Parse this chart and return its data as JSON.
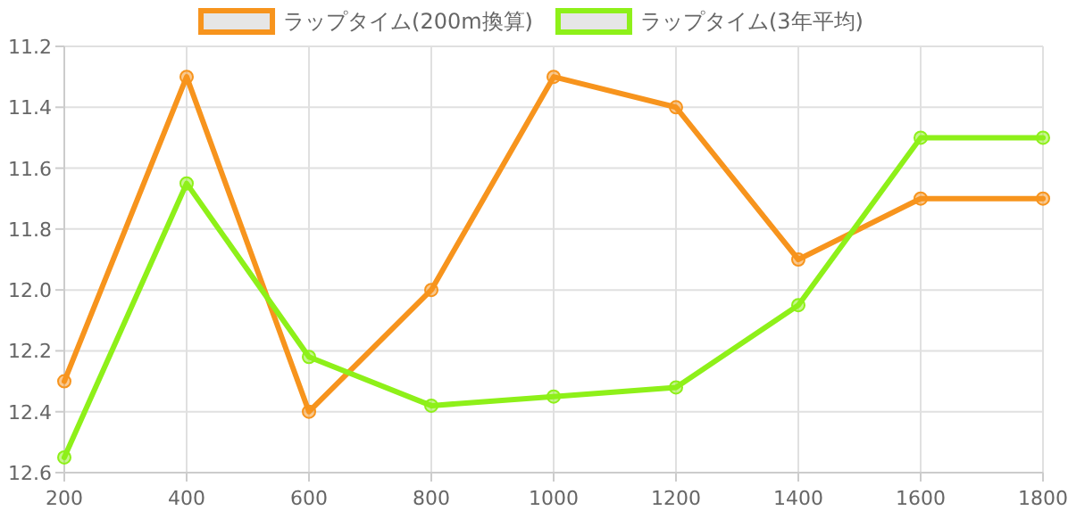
{
  "chart_data": {
    "type": "line",
    "x": [
      200,
      400,
      600,
      800,
      1000,
      1200,
      1400,
      1600,
      1800
    ],
    "series": [
      {
        "name": "ラップタイム(200m換算)",
        "color": "#f7941d",
        "values": [
          12.3,
          11.3,
          12.4,
          12.0,
          11.3,
          11.4,
          11.9,
          11.7,
          11.7
        ]
      },
      {
        "name": "ラップタイム(3年平均)",
        "color": "#8ef019",
        "values": [
          12.55,
          11.65,
          12.22,
          12.38,
          12.35,
          12.32,
          12.05,
          11.5,
          11.5
        ]
      }
    ],
    "xlim": [
      200,
      1800
    ],
    "xticks": [
      200,
      400,
      600,
      800,
      1000,
      1200,
      1400,
      1600,
      1800
    ],
    "ylim": [
      12.6,
      11.2
    ],
    "yticks": [
      {
        "value": 11.2,
        "label": "11.2"
      },
      {
        "value": 11.4,
        "label": "11.4"
      },
      {
        "value": 11.6,
        "label": "11.6"
      },
      {
        "value": 11.8,
        "label": "11.8"
      },
      {
        "value": 12.0,
        "label": "12.0"
      },
      {
        "value": 12.2,
        "label": "12.2"
      },
      {
        "value": 12.4,
        "label": "12.4"
      },
      {
        "value": 12.6,
        "label": "12.6"
      }
    ],
    "grid": true,
    "legend": "top",
    "marker": "circle",
    "line_style": "solid"
  }
}
